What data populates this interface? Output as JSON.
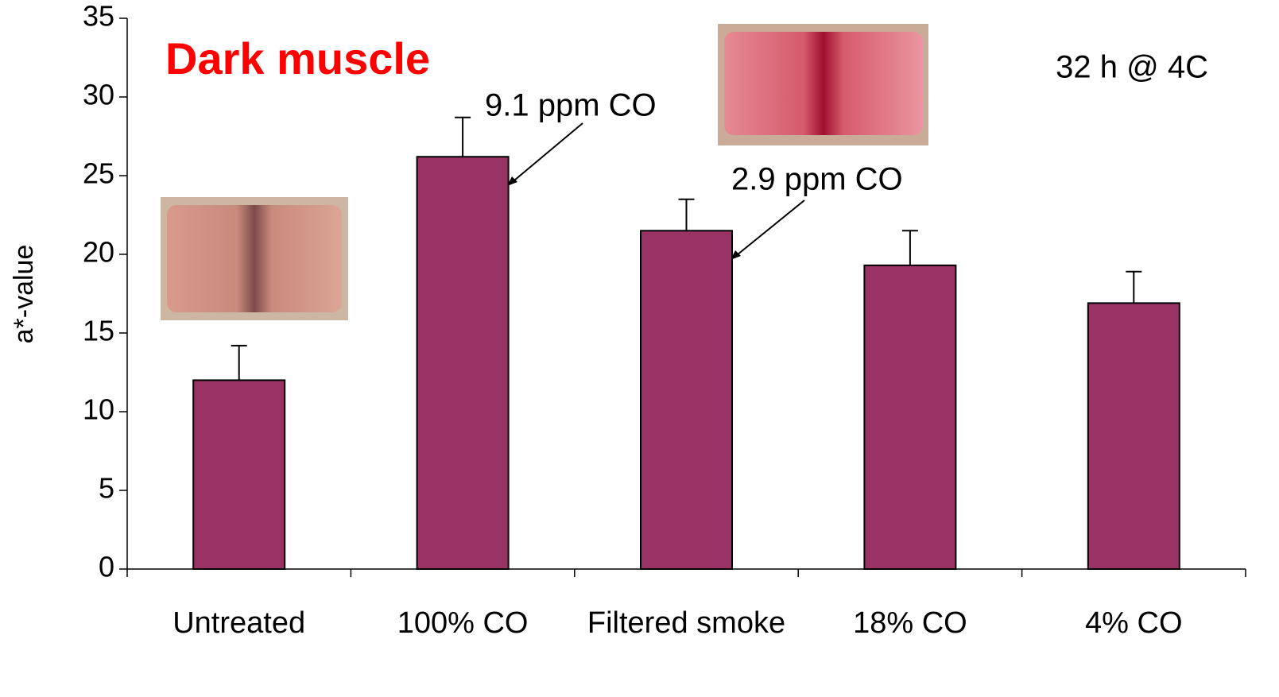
{
  "chart_data": {
    "type": "bar",
    "title": "Dark muscle",
    "annotations": [
      "32 h @ 4C",
      "9.1 ppm CO",
      "2.9 ppm CO"
    ],
    "y_label": "a*-value",
    "categories": [
      "Untreated",
      "100% CO",
      "Filtered smoke",
      "18% CO",
      "4% CO"
    ],
    "values": [
      12.0,
      26.2,
      21.5,
      19.3,
      16.9
    ],
    "errors": [
      2.2,
      2.5,
      2.0,
      2.2,
      2.0
    ],
    "color": "#993366",
    "ylim": [
      0,
      35
    ],
    "yticks": [
      0,
      5,
      10,
      15,
      20,
      25,
      30,
      35
    ]
  }
}
